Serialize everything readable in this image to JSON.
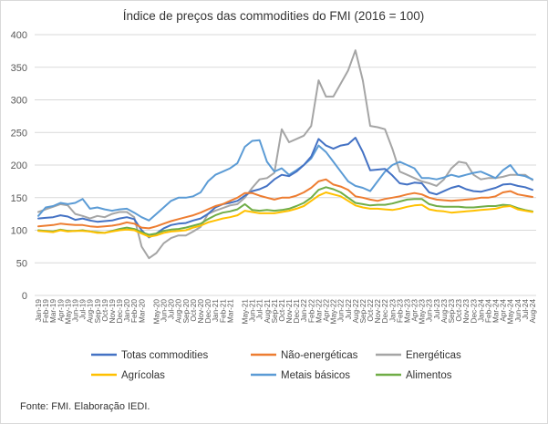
{
  "chart_data": {
    "type": "line",
    "title": "Índice de preços das commodities do FMI  (2016 = 100)",
    "xlabel": "",
    "ylabel": "",
    "ylim": [
      0,
      400
    ],
    "yticks": [
      0,
      50,
      100,
      150,
      200,
      250,
      300,
      350,
      400
    ],
    "grid": true,
    "legend_position": "bottom",
    "x": [
      "Jan-19",
      "Feb-19",
      "Mar-19",
      "Apr-19",
      "May-19",
      "Jun-19",
      "Jul-19",
      "Aug-19",
      "Sep-19",
      "Oct-19",
      "Nov-19",
      "Dec-19",
      "Jan-20",
      "Feb-20",
      "Mar-20",
      "Apr-20",
      "May-20",
      "Jun-20",
      "Jul-20",
      "Aug-20",
      "Sep-20",
      "Oct-20",
      "Nov-20",
      "Dec-20",
      "Jan-21",
      "Feb-21",
      "Mar-21",
      "Apr-21",
      "May-21",
      "Jun-21",
      "Jul-21",
      "Aug-21",
      "Sep-21",
      "Oct-21",
      "Nov-21",
      "Dec-21",
      "Jan-22",
      "Feb-22",
      "Mar-22",
      "Apr-22",
      "May-22",
      "Jun-22",
      "Jul-22",
      "Aug-22",
      "Sep-22",
      "Oct-22",
      "Nov-22",
      "Dec-22",
      "Jan-23",
      "Feb-23",
      "Mar-23",
      "Apr-23",
      "May-23",
      "Jun-23",
      "Jul-23",
      "Aug-23",
      "Sep-23",
      "Oct-23",
      "Nov-23",
      "Dec-23",
      "Jan-24",
      "Feb-24",
      "Mar-24",
      "Apr-24",
      "May-24",
      "Jun-24",
      "Jul-24",
      "Aug-24"
    ],
    "xticks_shown": [
      "Jan-19",
      "Feb-19",
      "Mar-19",
      "Apr-19",
      "May-19",
      "Jun-19",
      "Jul-19",
      "Aug-19",
      "Sep-19",
      "Oct-19",
      "Nov-19",
      "Dec-19",
      "Jan-20",
      "Feb-20",
      "Mar-20",
      "May-20",
      "Jun-20",
      "Jul-20",
      "Aug-20",
      "Sep-20",
      "Oct-20",
      "Nov-20",
      "Dec-20",
      "Jan-21",
      "Feb-21",
      "Mar-21",
      "May-21",
      "Jun-21",
      "Jul-21",
      "Aug-21",
      "Sep-21",
      "Oct-21",
      "Nov-21",
      "Dec-21",
      "Jan-22",
      "Feb-22",
      "Mar-22",
      "Apr-22",
      "May-22",
      "Jun-22",
      "Jul-22",
      "Aug-22",
      "Sep-22",
      "Oct-22",
      "Nov-22",
      "Dec-22",
      "Jan-23",
      "Feb-23",
      "Mar-23",
      "Apr-23",
      "May-23",
      "Jun-23",
      "Jul-23",
      "Aug-23",
      "Sep-23",
      "Oct-23",
      "Nov-23",
      "Dec-23",
      "Jan-24",
      "Feb-24",
      "Mar-24",
      "Apr-24",
      "May-24",
      "Jun-24",
      "Jul-24",
      "Aug-24"
    ],
    "series": [
      {
        "name": "Totas commodities",
        "color": "#4472C4",
        "values": [
          118,
          119,
          120,
          123,
          121,
          116,
          118,
          115,
          113,
          114,
          115,
          118,
          120,
          117,
          100,
          89,
          95,
          103,
          108,
          110,
          111,
          115,
          118,
          125,
          135,
          140,
          142,
          145,
          153,
          160,
          163,
          168,
          178,
          185,
          183,
          190,
          200,
          213,
          240,
          230,
          225,
          230,
          232,
          242,
          220,
          192,
          193,
          194,
          184,
          172,
          170,
          173,
          172,
          158,
          155,
          160,
          165,
          168,
          163,
          160,
          159,
          162,
          165,
          170,
          171,
          168,
          166,
          162
        ]
      },
      {
        "name": "Não-energéticas",
        "color": "#ED7D31",
        "values": [
          106,
          107,
          108,
          110,
          109,
          108,
          108,
          106,
          105,
          106,
          107,
          109,
          112,
          110,
          104,
          103,
          106,
          110,
          114,
          117,
          120,
          123,
          127,
          132,
          137,
          140,
          145,
          150,
          157,
          157,
          153,
          150,
          147,
          150,
          150,
          153,
          158,
          165,
          175,
          178,
          170,
          167,
          162,
          152,
          150,
          147,
          145,
          148,
          150,
          152,
          155,
          157,
          155,
          150,
          147,
          146,
          145,
          146,
          147,
          148,
          150,
          150,
          152,
          158,
          160,
          155,
          153,
          151
        ]
      },
      {
        "name": "Energéticas",
        "color": "#A5A5A5",
        "values": [
          128,
          132,
          136,
          140,
          138,
          125,
          122,
          118,
          122,
          120,
          125,
          128,
          128,
          120,
          75,
          57,
          65,
          80,
          88,
          92,
          92,
          98,
          105,
          125,
          130,
          134,
          138,
          140,
          150,
          165,
          178,
          180,
          188,
          255,
          235,
          240,
          245,
          260,
          330,
          305,
          305,
          325,
          345,
          376,
          330,
          260,
          258,
          255,
          225,
          190,
          185,
          180,
          175,
          172,
          168,
          178,
          195,
          205,
          203,
          185,
          178,
          180,
          180,
          182,
          185,
          185,
          185,
          177
        ]
      },
      {
        "name": "Agrícolas",
        "color": "#FFC000",
        "values": [
          99,
          98,
          97,
          100,
          98,
          99,
          99,
          98,
          96,
          96,
          98,
          100,
          101,
          100,
          95,
          90,
          92,
          96,
          98,
          99,
          100,
          104,
          107,
          112,
          115,
          118,
          120,
          123,
          130,
          128,
          126,
          126,
          126,
          128,
          130,
          133,
          137,
          145,
          153,
          158,
          155,
          152,
          145,
          138,
          135,
          133,
          133,
          132,
          131,
          133,
          136,
          138,
          139,
          132,
          130,
          129,
          127,
          128,
          129,
          130,
          131,
          132,
          133,
          136,
          137,
          132,
          130,
          128
        ]
      },
      {
        "name": "Metais básicos",
        "color": "#5B9BD5",
        "values": [
          122,
          135,
          137,
          142,
          140,
          142,
          148,
          133,
          135,
          132,
          130,
          132,
          133,
          127,
          120,
          115,
          125,
          135,
          145,
          150,
          150,
          152,
          158,
          175,
          185,
          190,
          195,
          203,
          228,
          237,
          238,
          205,
          190,
          195,
          185,
          192,
          200,
          210,
          230,
          220,
          205,
          190,
          175,
          168,
          165,
          160,
          175,
          190,
          200,
          205,
          200,
          195,
          180,
          180,
          178,
          181,
          185,
          182,
          185,
          188,
          190,
          185,
          180,
          192,
          200,
          185,
          183,
          178
        ]
      },
      {
        "name": "Alimentos",
        "color": "#70AD47",
        "values": [
          100,
          99,
          98,
          101,
          99,
          99,
          100,
          98,
          97,
          96,
          99,
          102,
          104,
          102,
          97,
          93,
          95,
          99,
          101,
          102,
          104,
          107,
          110,
          117,
          123,
          127,
          129,
          132,
          140,
          131,
          130,
          131,
          130,
          131,
          133,
          137,
          142,
          150,
          162,
          166,
          163,
          158,
          150,
          142,
          140,
          138,
          139,
          139,
          141,
          144,
          147,
          148,
          148,
          140,
          137,
          136,
          136,
          136,
          135,
          135,
          136,
          137,
          137,
          139,
          138,
          134,
          131,
          129
        ]
      }
    ]
  },
  "source": "Fonte: FMI. Elaboração IEDI."
}
